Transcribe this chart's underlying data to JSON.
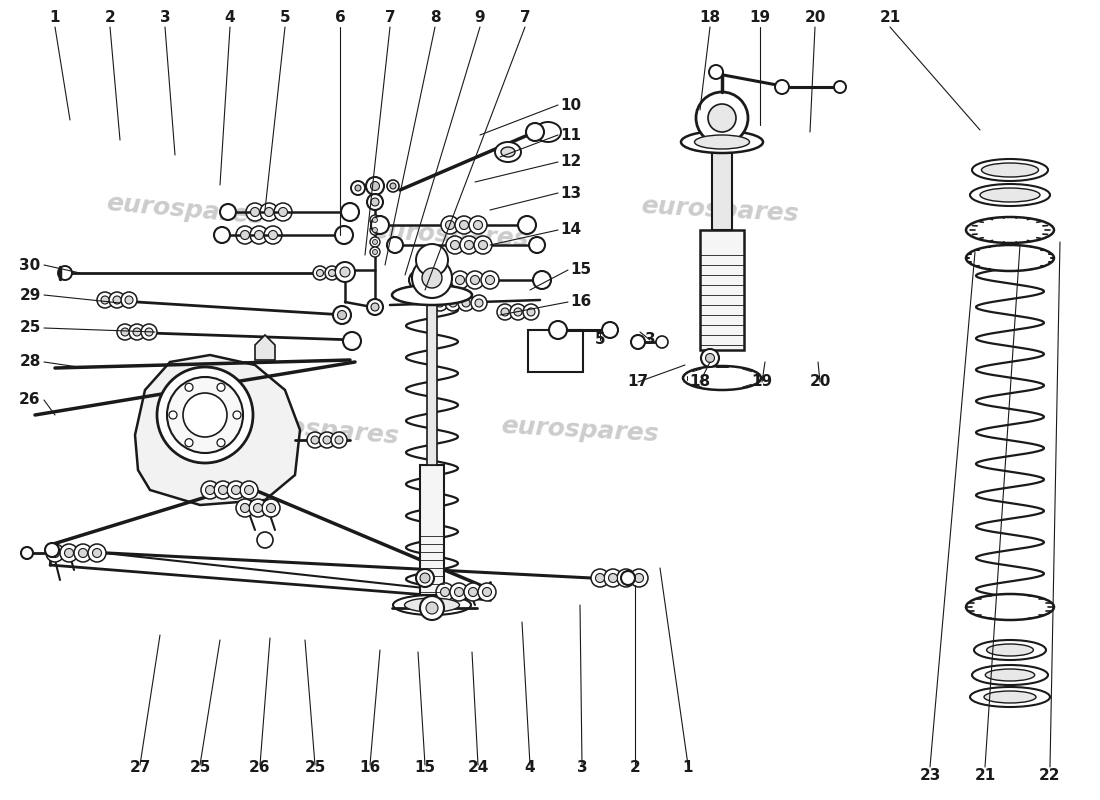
{
  "bg_color": "#ffffff",
  "lc": "#1a1a1a",
  "wc": "#cccccc",
  "lw_main": 1.5,
  "lw_thin": 0.9,
  "lw_label": 0.8,
  "top_labels": [
    [
      "1",
      55,
      775,
      70,
      680
    ],
    [
      "2",
      110,
      775,
      120,
      660
    ],
    [
      "3",
      165,
      775,
      175,
      645
    ],
    [
      "4",
      230,
      775,
      220,
      615
    ],
    [
      "5",
      285,
      775,
      265,
      590
    ],
    [
      "6",
      340,
      775,
      340,
      565
    ],
    [
      "7",
      390,
      775,
      365,
      545
    ],
    [
      "8",
      435,
      775,
      385,
      535
    ],
    [
      "9",
      480,
      775,
      405,
      525
    ],
    [
      "7",
      525,
      775,
      425,
      510
    ],
    [
      "18",
      710,
      775,
      700,
      690
    ],
    [
      "19",
      760,
      775,
      760,
      675
    ],
    [
      "20",
      815,
      775,
      810,
      668
    ],
    [
      "21",
      890,
      775,
      980,
      670
    ]
  ],
  "right_labels": [
    [
      "10",
      560,
      695,
      480,
      665
    ],
    [
      "11",
      560,
      665,
      500,
      643
    ],
    [
      "12",
      560,
      638,
      475,
      618
    ],
    [
      "13",
      560,
      607,
      490,
      590
    ],
    [
      "14",
      560,
      570,
      490,
      555
    ],
    [
      "15",
      570,
      530,
      530,
      510
    ],
    [
      "16",
      570,
      498,
      500,
      485
    ]
  ],
  "left_labels": [
    [
      "30",
      30,
      535,
      80,
      527
    ],
    [
      "29",
      30,
      505,
      120,
      497
    ],
    [
      "25",
      30,
      472,
      155,
      468
    ],
    [
      "28",
      30,
      438,
      85,
      432
    ],
    [
      "26",
      30,
      400,
      55,
      385
    ]
  ],
  "bottom_labels": [
    [
      "27",
      140,
      25,
      160,
      165
    ],
    [
      "25",
      200,
      25,
      220,
      160
    ],
    [
      "26",
      260,
      25,
      270,
      162
    ],
    [
      "25",
      315,
      25,
      305,
      160
    ],
    [
      "16",
      370,
      25,
      380,
      150
    ],
    [
      "15",
      425,
      25,
      418,
      148
    ],
    [
      "24",
      478,
      25,
      472,
      148
    ],
    [
      "4",
      530,
      25,
      522,
      178
    ],
    [
      "3",
      582,
      25,
      580,
      195
    ],
    [
      "2",
      635,
      25,
      635,
      215
    ],
    [
      "1",
      688,
      25,
      660,
      232
    ]
  ],
  "mid_right_labels": [
    [
      "17",
      638,
      418,
      685,
      435
    ],
    [
      "18",
      700,
      418,
      710,
      438
    ],
    [
      "19",
      762,
      418,
      765,
      438
    ],
    [
      "20",
      820,
      418,
      818,
      438
    ],
    [
      "23",
      930,
      25,
      975,
      548
    ],
    [
      "21",
      985,
      25,
      1020,
      555
    ],
    [
      "22",
      1050,
      25,
      1060,
      558
    ],
    [
      "5",
      600,
      460,
      600,
      470
    ],
    [
      "3",
      650,
      460,
      640,
      468
    ]
  ]
}
